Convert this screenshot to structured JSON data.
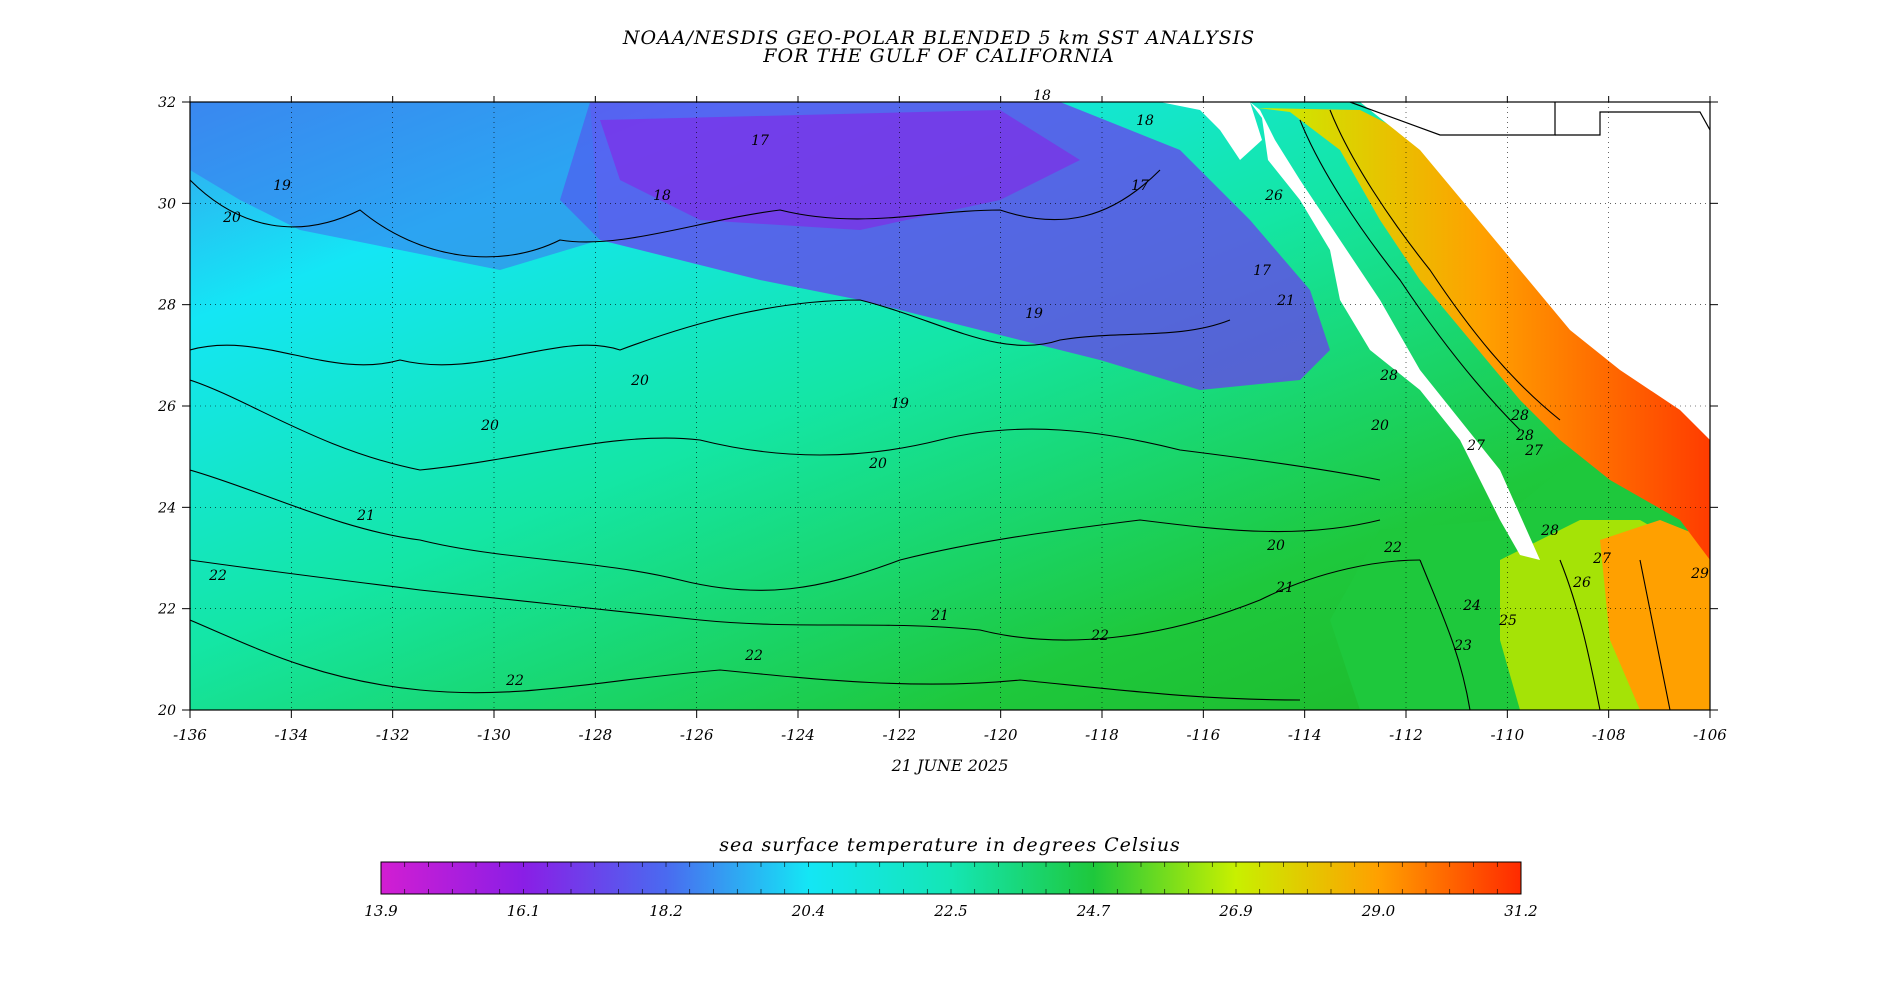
{
  "title_line1": "NOAA/NESDIS GEO-POLAR BLENDED 5 km SST ANALYSIS",
  "title_line2": "FOR THE GULF OF CALIFORNIA",
  "date": "21 JUNE 2025",
  "colorbar_title": "sea surface temperature in degrees Celsius",
  "lon_ticks": [
    "-136",
    "-134",
    "-132",
    "-130",
    "-128",
    "-126",
    "-124",
    "-122",
    "-120",
    "-118",
    "-116",
    "-114",
    "-112",
    "-110",
    "-108",
    "-106"
  ],
  "lat_ticks": [
    "20",
    "22",
    "24",
    "26",
    "28",
    "30",
    "32"
  ],
  "colorbar_ticks": [
    "13.9",
    "16.1",
    "18.2",
    "20.4",
    "22.5",
    "24.7",
    "26.9",
    "29.0",
    "31.2"
  ],
  "colorbar_colors": [
    "#d21ed2",
    "#8a1ee6",
    "#4a6af0",
    "#14e6f5",
    "#14e6b4",
    "#1ec83c",
    "#c8f000",
    "#ffa000",
    "#ff2a00"
  ],
  "contour_labels": [
    {
      "text": "19"
    },
    {
      "text": "20"
    },
    {
      "text": "18"
    },
    {
      "text": "17"
    },
    {
      "text": "18"
    },
    {
      "text": "17"
    },
    {
      "text": "19"
    },
    {
      "text": "18"
    },
    {
      "text": "20"
    },
    {
      "text": "20"
    },
    {
      "text": "19"
    },
    {
      "text": "20"
    },
    {
      "text": "21"
    },
    {
      "text": "21"
    },
    {
      "text": "22"
    },
    {
      "text": "22"
    },
    {
      "text": "22"
    },
    {
      "text": "21"
    },
    {
      "text": "22"
    },
    {
      "text": "20"
    },
    {
      "text": "21"
    },
    {
      "text": "22"
    },
    {
      "text": "24"
    },
    {
      "text": "23"
    },
    {
      "text": "25"
    },
    {
      "text": "26"
    },
    {
      "text": "27"
    },
    {
      "text": "28"
    },
    {
      "text": "29"
    },
    {
      "text": "28"
    },
    {
      "text": "27"
    },
    {
      "text": "28"
    },
    {
      "text": "17"
    },
    {
      "text": "20"
    },
    {
      "text": "28"
    },
    {
      "text": "27"
    },
    {
      "text": "26"
    }
  ]
}
